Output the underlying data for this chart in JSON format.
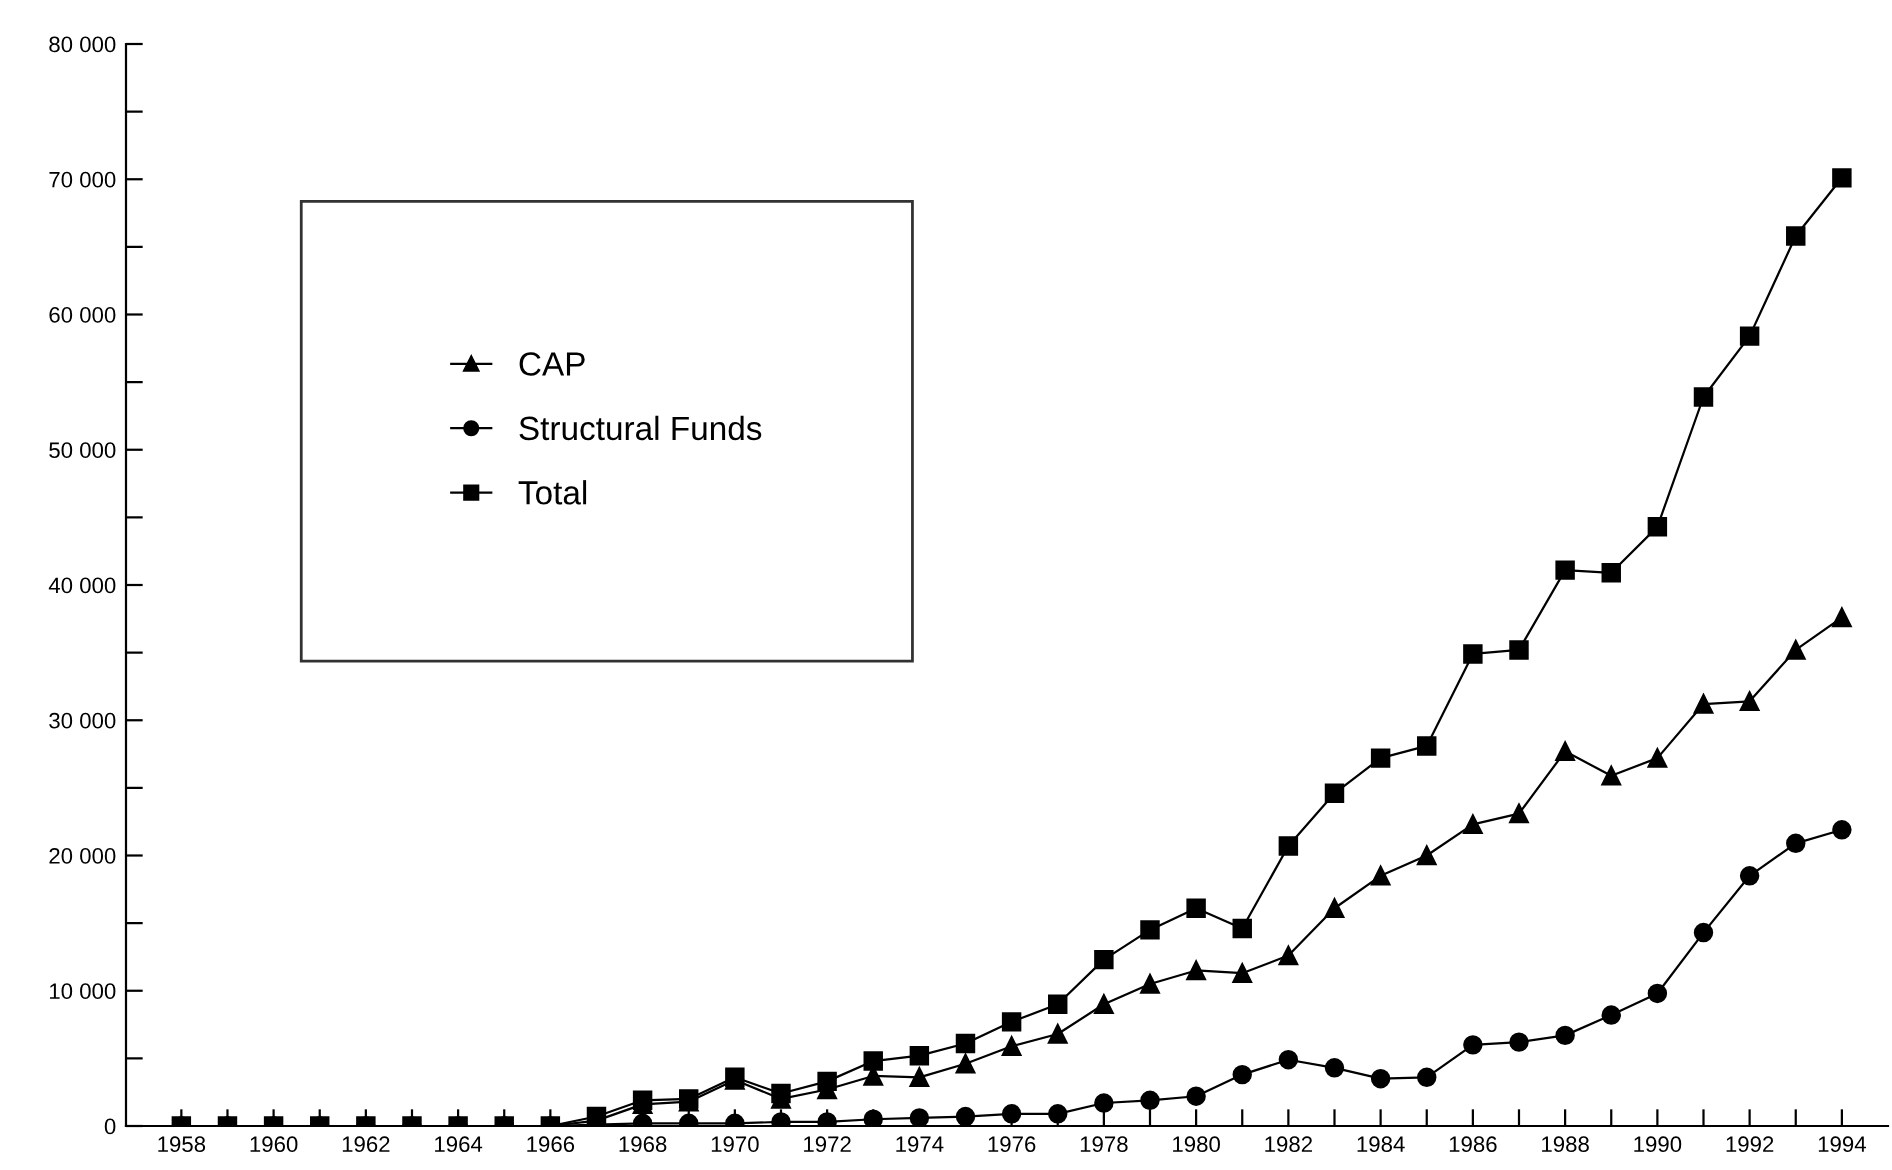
{
  "chart_data": {
    "type": "line",
    "x": [
      1958,
      1959,
      1960,
      1961,
      1962,
      1963,
      1964,
      1965,
      1966,
      1967,
      1968,
      1969,
      1970,
      1971,
      1972,
      1973,
      1974,
      1975,
      1976,
      1977,
      1978,
      1979,
      1980,
      1981,
      1982,
      1983,
      1984,
      1985,
      1986,
      1987,
      1988,
      1989,
      1990,
      1991,
      1992,
      1993,
      1994
    ],
    "series": [
      {
        "name": "CAP",
        "color": "#000000",
        "marker": "triangle",
        "values": [
          0,
          0,
          0,
          0,
          0,
          0,
          0,
          0,
          0,
          400,
          1600,
          1800,
          3400,
          2000,
          2700,
          3700,
          3600,
          4600,
          5900,
          6800,
          9000,
          10500,
          11500,
          11300,
          12600,
          16100,
          18500,
          20000,
          22300,
          23100,
          27700,
          25900,
          27200,
          31200,
          31400,
          35200,
          37600
        ]
      },
      {
        "name": "Structural Funds",
        "color": "#000000",
        "marker": "circle",
        "values": [
          0,
          0,
          0,
          0,
          0,
          0,
          0,
          0,
          0,
          100,
          200,
          200,
          200,
          300,
          300,
          500,
          600,
          700,
          900,
          900,
          1700,
          1900,
          2200,
          3800,
          4900,
          4300,
          3500,
          3600,
          6000,
          6200,
          6700,
          8200,
          9800,
          14300,
          18500,
          20900,
          21900
        ]
      },
      {
        "name": "Total",
        "color": "#000000",
        "marker": "square",
        "values": [
          0,
          0,
          0,
          0,
          0,
          0,
          0,
          0,
          0,
          700,
          1900,
          2000,
          3600,
          2400,
          3300,
          4800,
          5200,
          6100,
          7700,
          9000,
          12300,
          14500,
          16100,
          14600,
          20700,
          24600,
          27200,
          28100,
          34900,
          35200,
          41100,
          40900,
          44300,
          53900,
          58400,
          65800,
          70100
        ]
      }
    ],
    "xlim": [
      1956.8,
      1995
    ],
    "xticks": [
      1958,
      {
        "value": 1959,
        "label": null
      },
      1960,
      {
        "value": 1961,
        "label": null
      },
      1962,
      {
        "value": 1963,
        "label": null
      },
      1964,
      {
        "value": 1965,
        "label": null
      },
      1966,
      {
        "value": 1967,
        "label": null
      },
      1968,
      {
        "value": 1969,
        "label": null
      },
      1970,
      {
        "value": 1971,
        "label": null
      },
      1972,
      {
        "value": 1973,
        "label": null
      },
      1974,
      {
        "value": 1975,
        "label": null
      },
      1976,
      {
        "value": 1977,
        "label": null
      },
      1978,
      {
        "value": 1979,
        "label": null
      },
      1980,
      {
        "value": 1981,
        "label": null
      },
      1982,
      {
        "value": 1983,
        "label": null
      },
      1984,
      {
        "value": 1985,
        "label": null
      },
      1986,
      {
        "value": 1987,
        "label": null
      },
      1988,
      {
        "value": 1989,
        "label": null
      },
      1990,
      {
        "value": 1991,
        "label": null
      },
      1992,
      {
        "value": 1993,
        "label": null
      },
      1994
    ],
    "ylim": [
      0,
      80000
    ],
    "yticks": [
      0,
      {
        "value": 5000,
        "label": null
      },
      {
        "value": 10000,
        "label": "10 000"
      },
      {
        "value": 15000,
        "label": null
      },
      {
        "value": 20000,
        "label": "20 000"
      },
      {
        "value": 25000,
        "label": null
      },
      {
        "value": 30000,
        "label": "30 000"
      },
      {
        "value": 35000,
        "label": null
      },
      {
        "value": 40000,
        "label": "40 000"
      },
      {
        "value": 45000,
        "label": null
      },
      {
        "value": 50000,
        "label": "50 000"
      },
      {
        "value": 55000,
        "label": null
      },
      {
        "value": 60000,
        "label": "60 000"
      },
      {
        "value": 65000,
        "label": null
      },
      {
        "value": 70000,
        "label": "70 000"
      },
      {
        "value": 75000,
        "label": null
      },
      {
        "value": 80000,
        "label": "80 000"
      }
    ],
    "grid": false,
    "legend": "top left"
  }
}
